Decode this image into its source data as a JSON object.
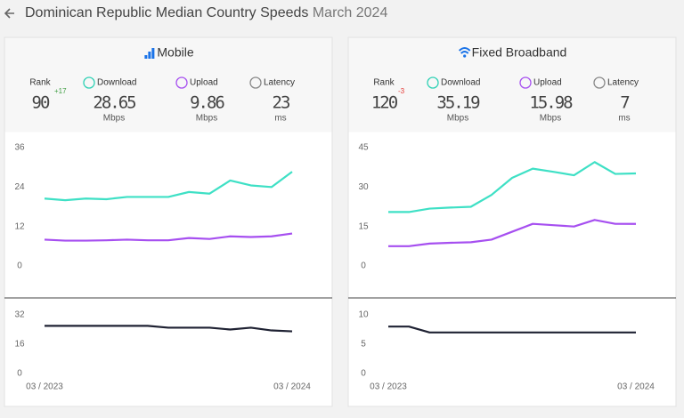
{
  "header": {
    "title": "Dominican Republic Median Country Speeds",
    "date": "March 2024"
  },
  "panels": [
    {
      "title": "Mobile",
      "stats": [
        {
          "label": "Rank",
          "value": 90,
          "change": "+17"
        },
        {
          "label": "Download",
          "value": 28.65,
          "unit": "Mbps"
        },
        {
          "label": "Upload",
          "value": 9.86,
          "unit": "Mbps"
        },
        {
          "label": "Latency",
          "value": 23,
          "unit": "ms"
        }
      ]
    },
    {
      "title": "Fixed Broadband",
      "stats": [
        {
          "label": "Rank",
          "value": 120,
          "change": "-3"
        },
        {
          "label": "Download",
          "value": 35.19,
          "unit": "Mbps"
        },
        {
          "label": "Upload",
          "value": 15.98,
          "unit": "Mbps"
        },
        {
          "label": "Latency",
          "value": 7,
          "unit": "ms"
        }
      ]
    }
  ],
  "chart_data": [
    {
      "type": "line",
      "x": [
        null,
        null,
        null,
        null,
        null,
        null,
        null,
        null,
        null,
        null,
        null,
        null,
        null
      ],
      "series": [
        {
          "color": "#3ee0c5",
          "values": [
            20.5,
            20,
            20.5,
            20.3,
            21,
            21,
            21,
            22.5,
            22,
            26,
            24.5,
            24,
            28.65
          ]
        },
        {
          "color": "#a64ff0",
          "values": [
            8,
            7.7,
            7.7,
            7.8,
            8,
            7.8,
            7.8,
            8.5,
            8.2,
            9,
            8.8,
            9,
            9.86
          ]
        }
      ],
      "ylim": [
        0,
        36
      ],
      "yticks": [
        0,
        12,
        24,
        36
      ]
    },
    {
      "type": "line",
      "x": [
        "03 / 2023",
        null,
        null,
        null,
        null,
        null,
        null,
        null,
        null,
        null,
        null,
        null,
        "03 / 2024"
      ],
      "series": [
        {
          "color": "#1f2233",
          "values": [
            26,
            26,
            26,
            26,
            26,
            26,
            25,
            25,
            25,
            24,
            25,
            23.5,
            23
          ]
        }
      ],
      "ylim": [
        0,
        32
      ],
      "yticks": [
        0,
        16,
        32
      ]
    },
    {
      "type": "line",
      "x": [
        null,
        null,
        null,
        null,
        null,
        null,
        null,
        null,
        null,
        null,
        null,
        null,
        null
      ],
      "series": [
        {
          "color": "#3ee0c5",
          "values": [
            20.5,
            20.5,
            21.8,
            22.2,
            22.5,
            27,
            33.5,
            37,
            35.8,
            34.5,
            39.5,
            35,
            35.19
          ]
        },
        {
          "color": "#a64ff0",
          "values": [
            7.5,
            7.5,
            8.5,
            8.8,
            9,
            10,
            13,
            16,
            15.5,
            15,
            17.5,
            16,
            15.98
          ]
        }
      ],
      "ylim": [
        0,
        45
      ],
      "yticks": [
        0,
        15,
        30,
        45
      ]
    },
    {
      "type": "line",
      "x": [
        "03 / 2023",
        null,
        null,
        null,
        null,
        null,
        null,
        null,
        null,
        null,
        null,
        null,
        "03 / 2024"
      ],
      "series": [
        {
          "color": "#1f2233",
          "values": [
            8,
            8,
            7,
            7,
            7,
            7,
            7,
            7,
            7,
            7,
            7,
            7,
            7
          ]
        }
      ],
      "ylim": [
        0,
        10
      ],
      "yticks": [
        0,
        5,
        10
      ]
    }
  ]
}
